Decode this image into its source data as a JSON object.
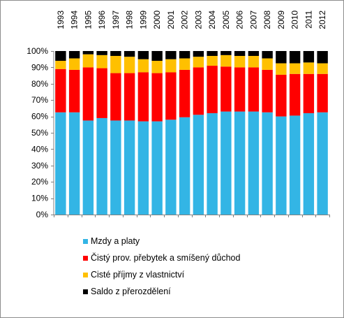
{
  "chart_data": {
    "type": "bar",
    "stacked": true,
    "categories": [
      "1993",
      "1994",
      "1995",
      "1996",
      "1997",
      "1998",
      "1999",
      "2000",
      "2001",
      "2002",
      "2003",
      "2004",
      "2005",
      "2006",
      "2007",
      "2008",
      "2009",
      "2010",
      "2011",
      "2012"
    ],
    "series": [
      {
        "name": "Mzdy a platy",
        "color": "#33b5e5",
        "values": [
          62.5,
          62.5,
          57.5,
          59,
          57.5,
          57.5,
          57,
          57,
          58,
          59.5,
          61,
          62,
          63,
          63,
          63,
          62.5,
          60,
          60.5,
          62,
          62.5
        ]
      },
      {
        "name": "Čistý prov. přebytek a smíšený důchod",
        "color": "#ff0000",
        "values": [
          26.5,
          26,
          32.5,
          30.5,
          29,
          29,
          30,
          29.5,
          29,
          29,
          29,
          29,
          27.5,
          27,
          27,
          26,
          25.5,
          25.5,
          24,
          23.5
        ]
      },
      {
        "name": "Cisté příjmy z vlastnictví",
        "color": "#ffc000",
        "values": [
          5,
          7,
          8,
          8,
          10.5,
          10,
          8,
          7.5,
          8,
          7,
          6.5,
          6,
          7,
          7,
          7,
          7,
          7,
          6.5,
          7,
          6.5
        ]
      },
      {
        "name": "Saldo z přerozdělení",
        "color": "#000000",
        "values": [
          6,
          4.5,
          2,
          2.5,
          3,
          3.5,
          5,
          6,
          5,
          4.5,
          3.5,
          3,
          2.5,
          3,
          3,
          4.5,
          7.5,
          7.5,
          7,
          7.5
        ]
      }
    ],
    "y_ticks": [
      "0%",
      "10%",
      "20%",
      "30%",
      "40%",
      "50%",
      "60%",
      "70%",
      "80%",
      "90%",
      "100%"
    ],
    "ylim": [
      0,
      100
    ],
    "legend_position": "bottom",
    "grid": false
  }
}
